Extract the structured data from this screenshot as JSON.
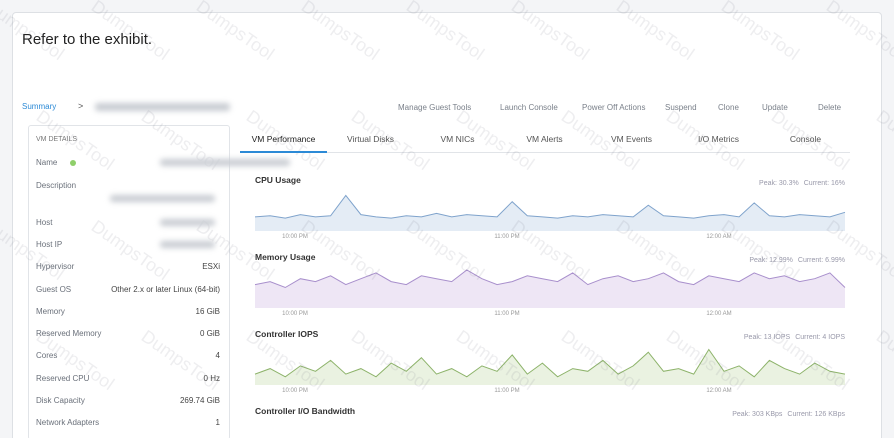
{
  "header": {
    "title": "Refer to the exhibit."
  },
  "breadcrumb": {
    "root": "Summary",
    "separator": ">"
  },
  "actions": [
    "Manage Guest Tools",
    "Launch Console",
    "Power Off Actions",
    "Suspend",
    "Clone",
    "Update",
    "Delete"
  ],
  "vm_details": {
    "title": "VM DETAILS",
    "rows": [
      {
        "label": "Name"
      },
      {
        "label": "Description"
      },
      {
        "label": "Host"
      },
      {
        "label": "Host IP"
      },
      {
        "label": "Hypervisor",
        "value": "ESXi"
      },
      {
        "label": "Guest OS",
        "value": "Other 2.x or later Linux (64-bit)"
      },
      {
        "label": "Memory",
        "value": "16 GiB"
      },
      {
        "label": "Reserved Memory",
        "value": "0 GiB"
      },
      {
        "label": "Cores",
        "value": "4"
      },
      {
        "label": "Reserved CPU",
        "value": "0 Hz"
      },
      {
        "label": "Disk Capacity",
        "value": "269.74 GiB"
      },
      {
        "label": "Network Adapters",
        "value": "1"
      }
    ]
  },
  "tabs": [
    "VM Performance",
    "Virtual Disks",
    "VM NICs",
    "VM Alerts",
    "VM Events",
    "I/O Metrics",
    "Console"
  ],
  "charts": [
    {
      "title": "CPU Usage",
      "peak": "Peak: 30.3%",
      "current": "Current: 16%",
      "time_labels": [
        "10:00 PM",
        "11:00 PM",
        "12:00 AM"
      ],
      "ylim": [
        0,
        35
      ],
      "color": "#7fa3cc",
      "fill": "#e4ecf5",
      "values": [
        12,
        13,
        11,
        14,
        12,
        13,
        30.3,
        14,
        12,
        11,
        13,
        12,
        15,
        12,
        14,
        13,
        12,
        25,
        13,
        12,
        11,
        13,
        12,
        14,
        13,
        12,
        22,
        13,
        12,
        11,
        13,
        14,
        12,
        24,
        13,
        12,
        14,
        13,
        12,
        16
      ]
    },
    {
      "title": "Memory Usage",
      "peak": "Peak: 12.99%",
      "current": "Current: 6.99%",
      "time_labels": [
        "10:00 PM",
        "11:00 PM",
        "12:00 AM"
      ],
      "ylim": [
        0,
        14
      ],
      "color": "#a88fcc",
      "fill": "#eee6f5",
      "values": [
        8,
        9,
        7,
        10,
        9,
        11,
        8,
        10,
        12,
        9,
        8,
        11,
        10,
        9,
        12.99,
        10,
        8,
        9,
        11,
        10,
        9,
        12,
        8,
        10,
        11,
        9,
        10,
        12,
        9,
        8,
        11,
        10,
        9,
        12,
        10,
        11,
        9,
        10,
        12,
        6.99
      ]
    },
    {
      "title": "Controller IOPS",
      "peak": "Peak: 13 IOPS",
      "current": "Current: 4 IOPS",
      "time_labels": [
        "10:00 PM",
        "11:00 PM",
        "12:00 AM"
      ],
      "ylim": [
        0,
        15
      ],
      "color": "#8db36a",
      "fill": "#eaf2e1",
      "values": [
        4,
        6,
        3,
        7,
        5,
        9,
        4,
        6,
        3,
        8,
        5,
        10,
        4,
        6,
        3,
        7,
        5,
        11,
        4,
        8,
        3,
        6,
        5,
        9,
        4,
        7,
        12,
        5,
        6,
        4,
        13,
        5,
        7,
        3,
        9,
        6,
        4,
        8,
        5,
        4
      ]
    },
    {
      "title": "Controller I/O Bandwidth",
      "peak": "Peak: 303 KBps",
      "current": "Current: 126 KBps"
    }
  ],
  "watermark": "DumpsTool"
}
